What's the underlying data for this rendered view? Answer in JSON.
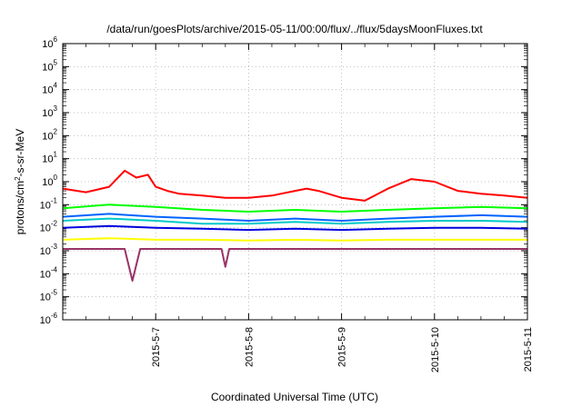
{
  "chart_data": {
    "type": "line",
    "title": "/data/run/goesPlots/archive/2015-05-11/00:00/flux/../flux/5daysMoonFluxes.txt",
    "xlabel": "Coordinated Universal Time (UTC)",
    "ylabel": {
      "pre": "protons/cm",
      "sup": "2",
      "post": "-s-sr-MeV"
    },
    "yscale": "log",
    "ylim": [
      1e-06,
      1000000.0
    ],
    "xlim": [
      "2015-05-06 00:00",
      "2015-05-11 00:00"
    ],
    "grid": true,
    "legend": "none",
    "y_ticks": [
      {
        "value": 1e-06,
        "base": "10",
        "exp": "-6"
      },
      {
        "value": 1e-05,
        "base": "10",
        "exp": "-5"
      },
      {
        "value": 0.0001,
        "base": "10",
        "exp": "-4"
      },
      {
        "value": 0.001,
        "base": "10",
        "exp": "-3"
      },
      {
        "value": 0.01,
        "base": "10",
        "exp": "-2"
      },
      {
        "value": 0.1,
        "base": "10",
        "exp": "-1"
      },
      {
        "value": 1.0,
        "base": "10",
        "exp": "0"
      },
      {
        "value": 10.0,
        "base": "10",
        "exp": "1"
      },
      {
        "value": 100.0,
        "base": "10",
        "exp": "2"
      },
      {
        "value": 1000.0,
        "base": "10",
        "exp": "3"
      },
      {
        "value": 10000.0,
        "base": "10",
        "exp": "4"
      },
      {
        "value": 100000.0,
        "base": "10",
        "exp": "5"
      },
      {
        "value": 1000000.0,
        "base": "10",
        "exp": "6"
      }
    ],
    "x_ticks": [
      {
        "date": "2015-05-07 00:00",
        "label": "2015-5-7"
      },
      {
        "date": "2015-05-08 00:00",
        "label": "2015-5-8"
      },
      {
        "date": "2015-05-09 00:00",
        "label": "2015-5-9"
      },
      {
        "date": "2015-05-10 00:00",
        "label": "2015-5-10"
      },
      {
        "date": "2015-05-11 00:00",
        "label": "2015-5-11"
      }
    ],
    "series": [
      {
        "color": "#ff0000",
        "x": [
          "2015-05-06 00:00",
          "2015-05-06 06:00",
          "2015-05-06 12:00",
          "2015-05-06 16:00",
          "2015-05-06 19:00",
          "2015-05-06 22:00",
          "2015-05-07 00:00",
          "2015-05-07 03:00",
          "2015-05-07 06:00",
          "2015-05-07 12:00",
          "2015-05-07 18:00",
          "2015-05-08 00:00",
          "2015-05-08 06:00",
          "2015-05-08 12:00",
          "2015-05-08 15:00",
          "2015-05-08 18:00",
          "2015-05-09 00:00",
          "2015-05-09 06:00",
          "2015-05-09 12:00",
          "2015-05-09 18:00",
          "2015-05-10 00:00",
          "2015-05-10 06:00",
          "2015-05-10 12:00",
          "2015-05-10 18:00",
          "2015-05-11 00:00"
        ],
        "values": [
          0.5,
          0.35,
          0.6,
          3.0,
          1.5,
          2.0,
          0.6,
          0.4,
          0.3,
          0.25,
          0.2,
          0.2,
          0.25,
          0.4,
          0.5,
          0.4,
          0.2,
          0.15,
          0.5,
          1.3,
          1.0,
          0.4,
          0.3,
          0.25,
          0.2
        ]
      },
      {
        "color": "#00ff00",
        "x": [
          "2015-05-06 00:00",
          "2015-05-06 12:00",
          "2015-05-07 00:00",
          "2015-05-07 12:00",
          "2015-05-08 00:00",
          "2015-05-08 12:00",
          "2015-05-09 00:00",
          "2015-05-09 12:00",
          "2015-05-10 00:00",
          "2015-05-10 12:00",
          "2015-05-11 00:00"
        ],
        "values": [
          0.07,
          0.1,
          0.08,
          0.06,
          0.05,
          0.06,
          0.05,
          0.06,
          0.07,
          0.08,
          0.07
        ]
      },
      {
        "color": "#00c8c8",
        "x": [
          "2015-05-06 00:00",
          "2015-05-06 12:00",
          "2015-05-07 00:00",
          "2015-05-07 12:00",
          "2015-05-08 00:00",
          "2015-05-08 12:00",
          "2015-05-09 00:00",
          "2015-05-09 12:00",
          "2015-05-10 00:00",
          "2015-05-10 12:00",
          "2015-05-11 00:00"
        ],
        "values": [
          0.02,
          0.025,
          0.02,
          0.015,
          0.015,
          0.018,
          0.015,
          0.018,
          0.02,
          0.02,
          0.018
        ]
      },
      {
        "color": "#0064ff",
        "x": [
          "2015-05-06 00:00",
          "2015-05-06 12:00",
          "2015-05-07 00:00",
          "2015-05-07 12:00",
          "2015-05-08 00:00",
          "2015-05-08 12:00",
          "2015-05-09 00:00",
          "2015-05-09 12:00",
          "2015-05-10 00:00",
          "2015-05-10 12:00",
          "2015-05-11 00:00"
        ],
        "values": [
          0.03,
          0.04,
          0.03,
          0.025,
          0.02,
          0.025,
          0.02,
          0.025,
          0.03,
          0.035,
          0.03
        ]
      },
      {
        "color": "#0000e0",
        "x": [
          "2015-05-06 00:00",
          "2015-05-06 12:00",
          "2015-05-07 00:00",
          "2015-05-07 12:00",
          "2015-05-08 00:00",
          "2015-05-08 12:00",
          "2015-05-09 00:00",
          "2015-05-09 12:00",
          "2015-05-10 00:00",
          "2015-05-10 12:00",
          "2015-05-11 00:00"
        ],
        "values": [
          0.01,
          0.012,
          0.01,
          0.009,
          0.008,
          0.009,
          0.008,
          0.009,
          0.01,
          0.01,
          0.009
        ]
      },
      {
        "color": "#ffff00",
        "x": [
          "2015-05-06 00:00",
          "2015-05-06 12:00",
          "2015-05-07 00:00",
          "2015-05-07 12:00",
          "2015-05-08 00:00",
          "2015-05-08 12:00",
          "2015-05-09 00:00",
          "2015-05-09 12:00",
          "2015-05-10 00:00",
          "2015-05-10 12:00",
          "2015-05-11 00:00"
        ],
        "values": [
          0.003,
          0.0035,
          0.003,
          0.003,
          0.0028,
          0.003,
          0.0028,
          0.003,
          0.003,
          0.003,
          0.003
        ]
      },
      {
        "color": "#993366",
        "x": [
          "2015-05-06 00:00",
          "2015-05-06 12:00",
          "2015-05-06 16:00",
          "2015-05-06 18:00",
          "2015-05-06 20:00",
          "2015-05-07 00:00",
          "2015-05-07 12:00",
          "2015-05-07 17:00",
          "2015-05-07 18:00",
          "2015-05-07 19:00",
          "2015-05-08 00:00",
          "2015-05-08 12:00",
          "2015-05-09 00:00",
          "2015-05-09 12:00",
          "2015-05-10 00:00",
          "2015-05-10 12:00",
          "2015-05-11 00:00"
        ],
        "values": [
          0.0012,
          0.0012,
          0.0012,
          5e-05,
          0.0012,
          0.0012,
          0.0012,
          0.0012,
          0.0002,
          0.0012,
          0.0012,
          0.0012,
          0.0012,
          0.0012,
          0.0012,
          0.0012,
          0.0012
        ]
      }
    ]
  }
}
